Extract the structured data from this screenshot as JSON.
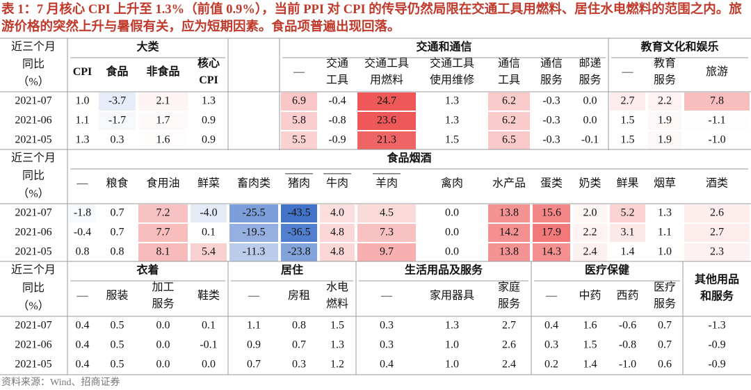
{
  "title": "表 1：7 月核心 CPI 上升至 1.3%（前值 0.9%），当前 PPI 对 CPI 的传导仍然局限在交通工具用燃料、居住水电燃料的范围之内。旅游价格的突然上升与暑假有关，应为短期因素。食品项普遍出现回落。",
  "source": "资料来源：Wind、招商证券",
  "blocks": [
    {
      "row_header": [
        "近三个月",
        "同比",
        "（%）"
      ],
      "heatmap": true,
      "groups": [
        {
          "label": "大类",
          "columns": [
            "CPI",
            "食品",
            "非食品",
            [
              "核心",
              "CPI"
            ]
          ]
        },
        {
          "label": null,
          "columns": [
            null
          ]
        },
        {
          "label": "交通和通信",
          "columns": [
            "—",
            [
              "交通",
              "工具"
            ],
            [
              "交通工具",
              "用燃料"
            ],
            [
              "交通工具",
              "使用维修"
            ],
            [
              "通信",
              "工具"
            ],
            [
              "通信",
              "服务"
            ],
            [
              "邮递",
              "服务"
            ]
          ]
        },
        {
          "label": "教育文化和娱乐",
          "columns": [
            "—",
            [
              "教育",
              "服务"
            ],
            "旅游"
          ]
        }
      ],
      "rows": [
        {
          "date": "2021-07",
          "values": [
            "1.0",
            "-3.7",
            "2.1",
            "1.3",
            null,
            "6.9",
            "-0.4",
            "24.7",
            "1.3",
            "6.2",
            "-0.3",
            "0.0",
            "2.7",
            "2.2",
            "7.8"
          ]
        },
        {
          "date": "2021-06",
          "values": [
            "1.1",
            "-1.7",
            "1.7",
            "0.9",
            null,
            "5.8",
            "-0.8",
            "23.6",
            "1.3",
            "6.2",
            "-0.3",
            "0.0",
            "1.5",
            "1.9",
            "-1.1"
          ]
        },
        {
          "date": "2021-05",
          "values": [
            "1.3",
            "0.3",
            "1.6",
            "0.9",
            null,
            "5.5",
            "-0.9",
            "21.3",
            "1.5",
            "6.5",
            "-0.3",
            "-0.1",
            "1.5",
            "1.9",
            "-1.0"
          ]
        }
      ]
    },
    {
      "row_header": [
        "近三个月",
        "同比",
        "（%）"
      ],
      "heatmap": true,
      "groups": [
        {
          "label": "食品烟酒",
          "columns": [
            "—",
            "粮食",
            "食用油",
            "鲜菜",
            "畜肉类",
            "猪肉",
            "牛肉",
            "羊肉",
            "禽肉",
            "水产品",
            "蛋类",
            "奶类",
            "鲜果",
            "烟草",
            "酒类"
          ]
        }
      ],
      "rows": [
        {
          "date": "2021-07",
          "values": [
            "-1.8",
            "0.7",
            "7.2",
            "-4.0",
            "-25.5",
            "-43.5",
            "4.0",
            "4.5",
            "0.0",
            "13.8",
            "15.6",
            "2.0",
            "5.2",
            "1.3",
            "2.6"
          ]
        },
        {
          "date": "2021-06",
          "values": [
            "-0.4",
            "0.7",
            "7.7",
            "0.1",
            "-19.5",
            "-36.5",
            "4.8",
            "7.3",
            "0.0",
            "14.2",
            "17.9",
            "2.2",
            "3.1",
            "1.1",
            "2.7"
          ]
        },
        {
          "date": "2021-05",
          "values": [
            "0.8",
            "0.8",
            "8.1",
            "5.4",
            "-11.3",
            "-23.8",
            "4.8",
            "9.7",
            "0.0",
            "13.8",
            "14.3",
            "2.4",
            "1.4",
            "1.0",
            "2.3"
          ]
        }
      ]
    },
    {
      "row_header": [
        "近三个月",
        "同比",
        "（%）"
      ],
      "heatmap": false,
      "groups": [
        {
          "label": "衣着",
          "columns": [
            "—",
            "服装",
            [
              "加工",
              "服务"
            ],
            "鞋类"
          ]
        },
        {
          "label": "居住",
          "columns": [
            "—",
            "房租",
            [
              "水电",
              "燃料"
            ]
          ]
        },
        {
          "label": "生活用品及服务",
          "columns": [
            "—",
            "家用器具",
            [
              "家庭",
              "服务"
            ]
          ]
        },
        {
          "label": "医疗保健",
          "columns": [
            "—",
            "中药",
            "西药",
            [
              "医疗",
              "服务"
            ]
          ]
        },
        {
          "label": [
            "其他用品",
            "和服务"
          ],
          "columns": [
            null
          ]
        }
      ],
      "rows": [
        {
          "date": "2021-07",
          "values": [
            "0.4",
            "0.5",
            "0.0",
            "0.1",
            "1.1",
            "0.8",
            "1.5",
            "0.3",
            "1.3",
            "2.7",
            "0.4",
            "1.6",
            "-0.6",
            "0.7",
            "-1.3"
          ]
        },
        {
          "date": "2021-06",
          "values": [
            "0.4",
            "0.5",
            "0.0",
            "-0.1",
            "0.9",
            "0.7",
            "1.3",
            "0.3",
            "1.0",
            "2.6",
            "0.3",
            "1.5",
            "-0.8",
            "0.7",
            "-0.9"
          ]
        },
        {
          "date": "2021-05",
          "values": [
            "0.4",
            "0.5",
            "0.0",
            "0.0",
            "0.7",
            "0.3",
            "1.2",
            "0.4",
            "1.0",
            "2.4",
            "0.2",
            "1.4",
            "-1.0",
            "0.6",
            "-0.9"
          ]
        }
      ]
    }
  ]
}
